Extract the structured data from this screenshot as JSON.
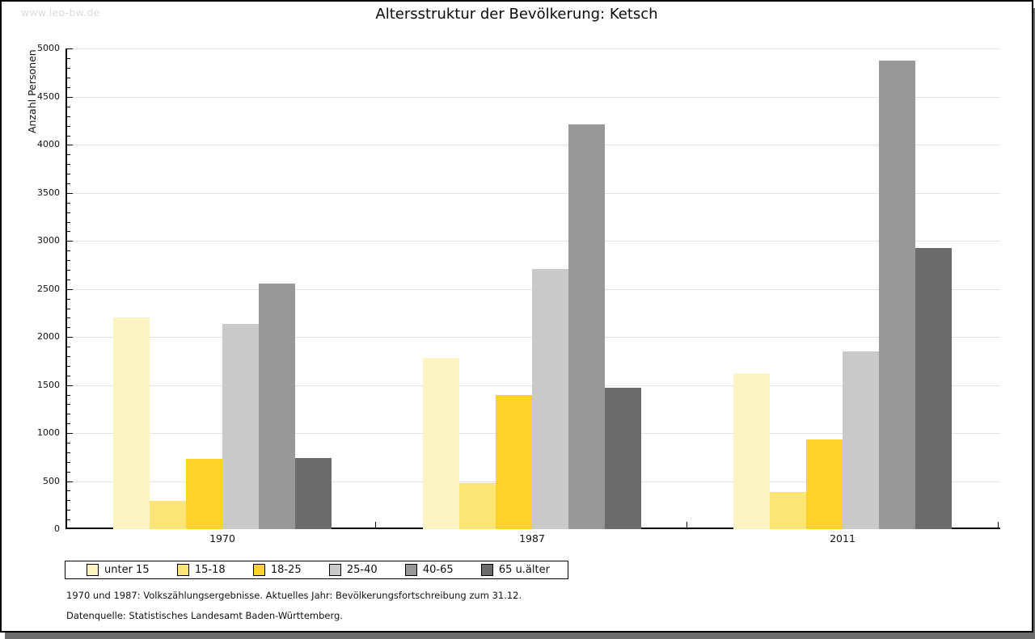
{
  "page": {
    "watermark": "www.leo-bw.de",
    "title": "Altersstruktur der Bevölkerung: Ketsch",
    "footnote_line1": "1970 und 1987: Volkszählungsergebnisse. Aktuelles Jahr: Bevölkerungsfortschreibung zum 31.12.",
    "footnote_line2": "Datenquelle: Statistisches Landesamt Baden-Württemberg."
  },
  "chart_data": {
    "type": "bar",
    "title": "Altersstruktur der Bevölkerung: Ketsch",
    "xlabel": "",
    "ylabel": "Anzahl Personen",
    "ylim": [
      0,
      5000
    ],
    "ytick_step": 500,
    "y_minor_tick_step": 100,
    "grid": true,
    "legend_position": "bottom",
    "gridline_color": "#E3E3E3",
    "categories": [
      "1970",
      "1987",
      "2011"
    ],
    "series": [
      {
        "name": "unter 15",
        "color": "#FCF4C3",
        "values": [
          2200,
          1780,
          1620
        ]
      },
      {
        "name": "15-18",
        "color": "#FBE577",
        "values": [
          295,
          480,
          390
        ]
      },
      {
        "name": "18-25",
        "color": "#FDD32B",
        "values": [
          730,
          1400,
          930
        ]
      },
      {
        "name": "25-40",
        "color": "#C9C9C9",
        "values": [
          2140,
          2710,
          1850
        ]
      },
      {
        "name": "40-65",
        "color": "#989898",
        "values": [
          2560,
          4210,
          4880
        ]
      },
      {
        "name": "65 u.älter",
        "color": "#6C6C6C",
        "values": [
          740,
          1470,
          2930
        ]
      }
    ]
  }
}
